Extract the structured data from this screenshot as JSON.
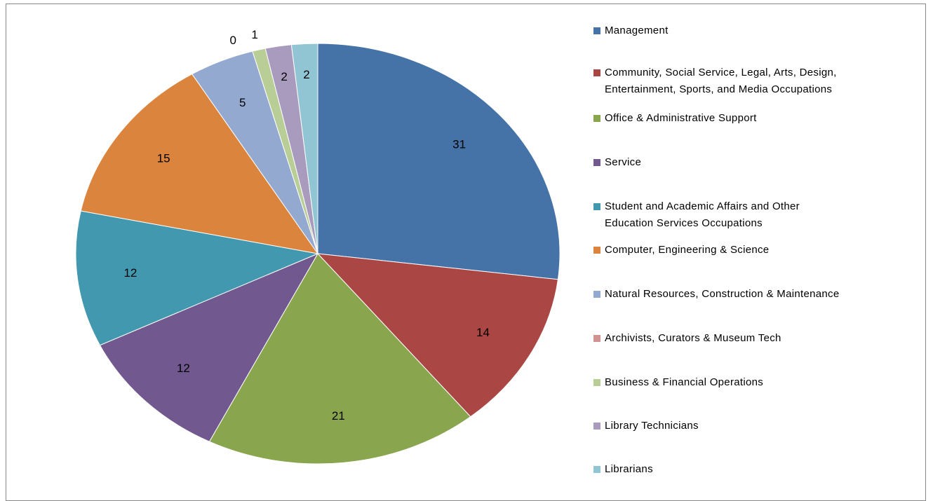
{
  "chart_data": {
    "type": "pie",
    "categories": [
      "Management",
      "Community, Social Service, Legal, Arts, Design, Entertainment, Sports, and Media Occupations",
      "Office & Administrative Support",
      "Service",
      "Student and Academic Affairs and Other Education Services Occupations",
      "Computer, Engineering & Science",
      "Natural Resources, Construction & Maintenance",
      "Archivists, Curators & Museum Tech",
      "Business & Financial Operations",
      "Library Technicians",
      "Librarians"
    ],
    "values": [
      31,
      14,
      21,
      12,
      12,
      15,
      5,
      0,
      1,
      2,
      2
    ],
    "colors": [
      "#4572a7",
      "#aa4643",
      "#89a54e",
      "#71588f",
      "#4198af",
      "#db843d",
      "#93a9cf",
      "#d19392",
      "#b9cd96",
      "#a99bbd",
      "#92c5d3"
    ],
    "legend": "right"
  }
}
